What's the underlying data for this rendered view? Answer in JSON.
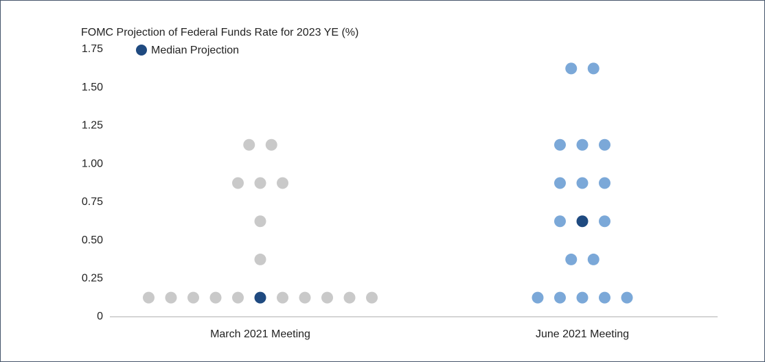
{
  "chart_data": {
    "type": "dot",
    "title": "FOMC Projection of Federal Funds Rate for 2023 YE (%)",
    "categories": [
      "March 2021 Meeting",
      "June 2021 Meeting"
    ],
    "values": [
      [
        0.125,
        0.125,
        0.125,
        0.125,
        0.125,
        0.125,
        0.125,
        0.125,
        0.125,
        0.125,
        0.375,
        0.625,
        0.875,
        0.875,
        0.875,
        1.125,
        1.125
      ],
      [
        0.125,
        0.125,
        0.125,
        0.125,
        0.125,
        0.375,
        0.375,
        0.625,
        0.625,
        0.875,
        0.875,
        0.875,
        1.125,
        1.125,
        1.125,
        1.625,
        1.625
      ]
    ],
    "colors": [
      "#c9c9c9",
      "#7ba8d8"
    ],
    "median": [
      0.125,
      0.625
    ],
    "median_name": "Median Projection",
    "median_color": "#1f4a80",
    "ylim": [
      0,
      1.75
    ],
    "yticks": [
      0,
      0.25,
      {
        "value": 0.5,
        "label": "0.50"
      },
      0.75,
      {
        "value": 1,
        "label": "1.00"
      },
      1.25,
      {
        "value": 1.5,
        "label": "1.50"
      },
      1.75
    ]
  }
}
